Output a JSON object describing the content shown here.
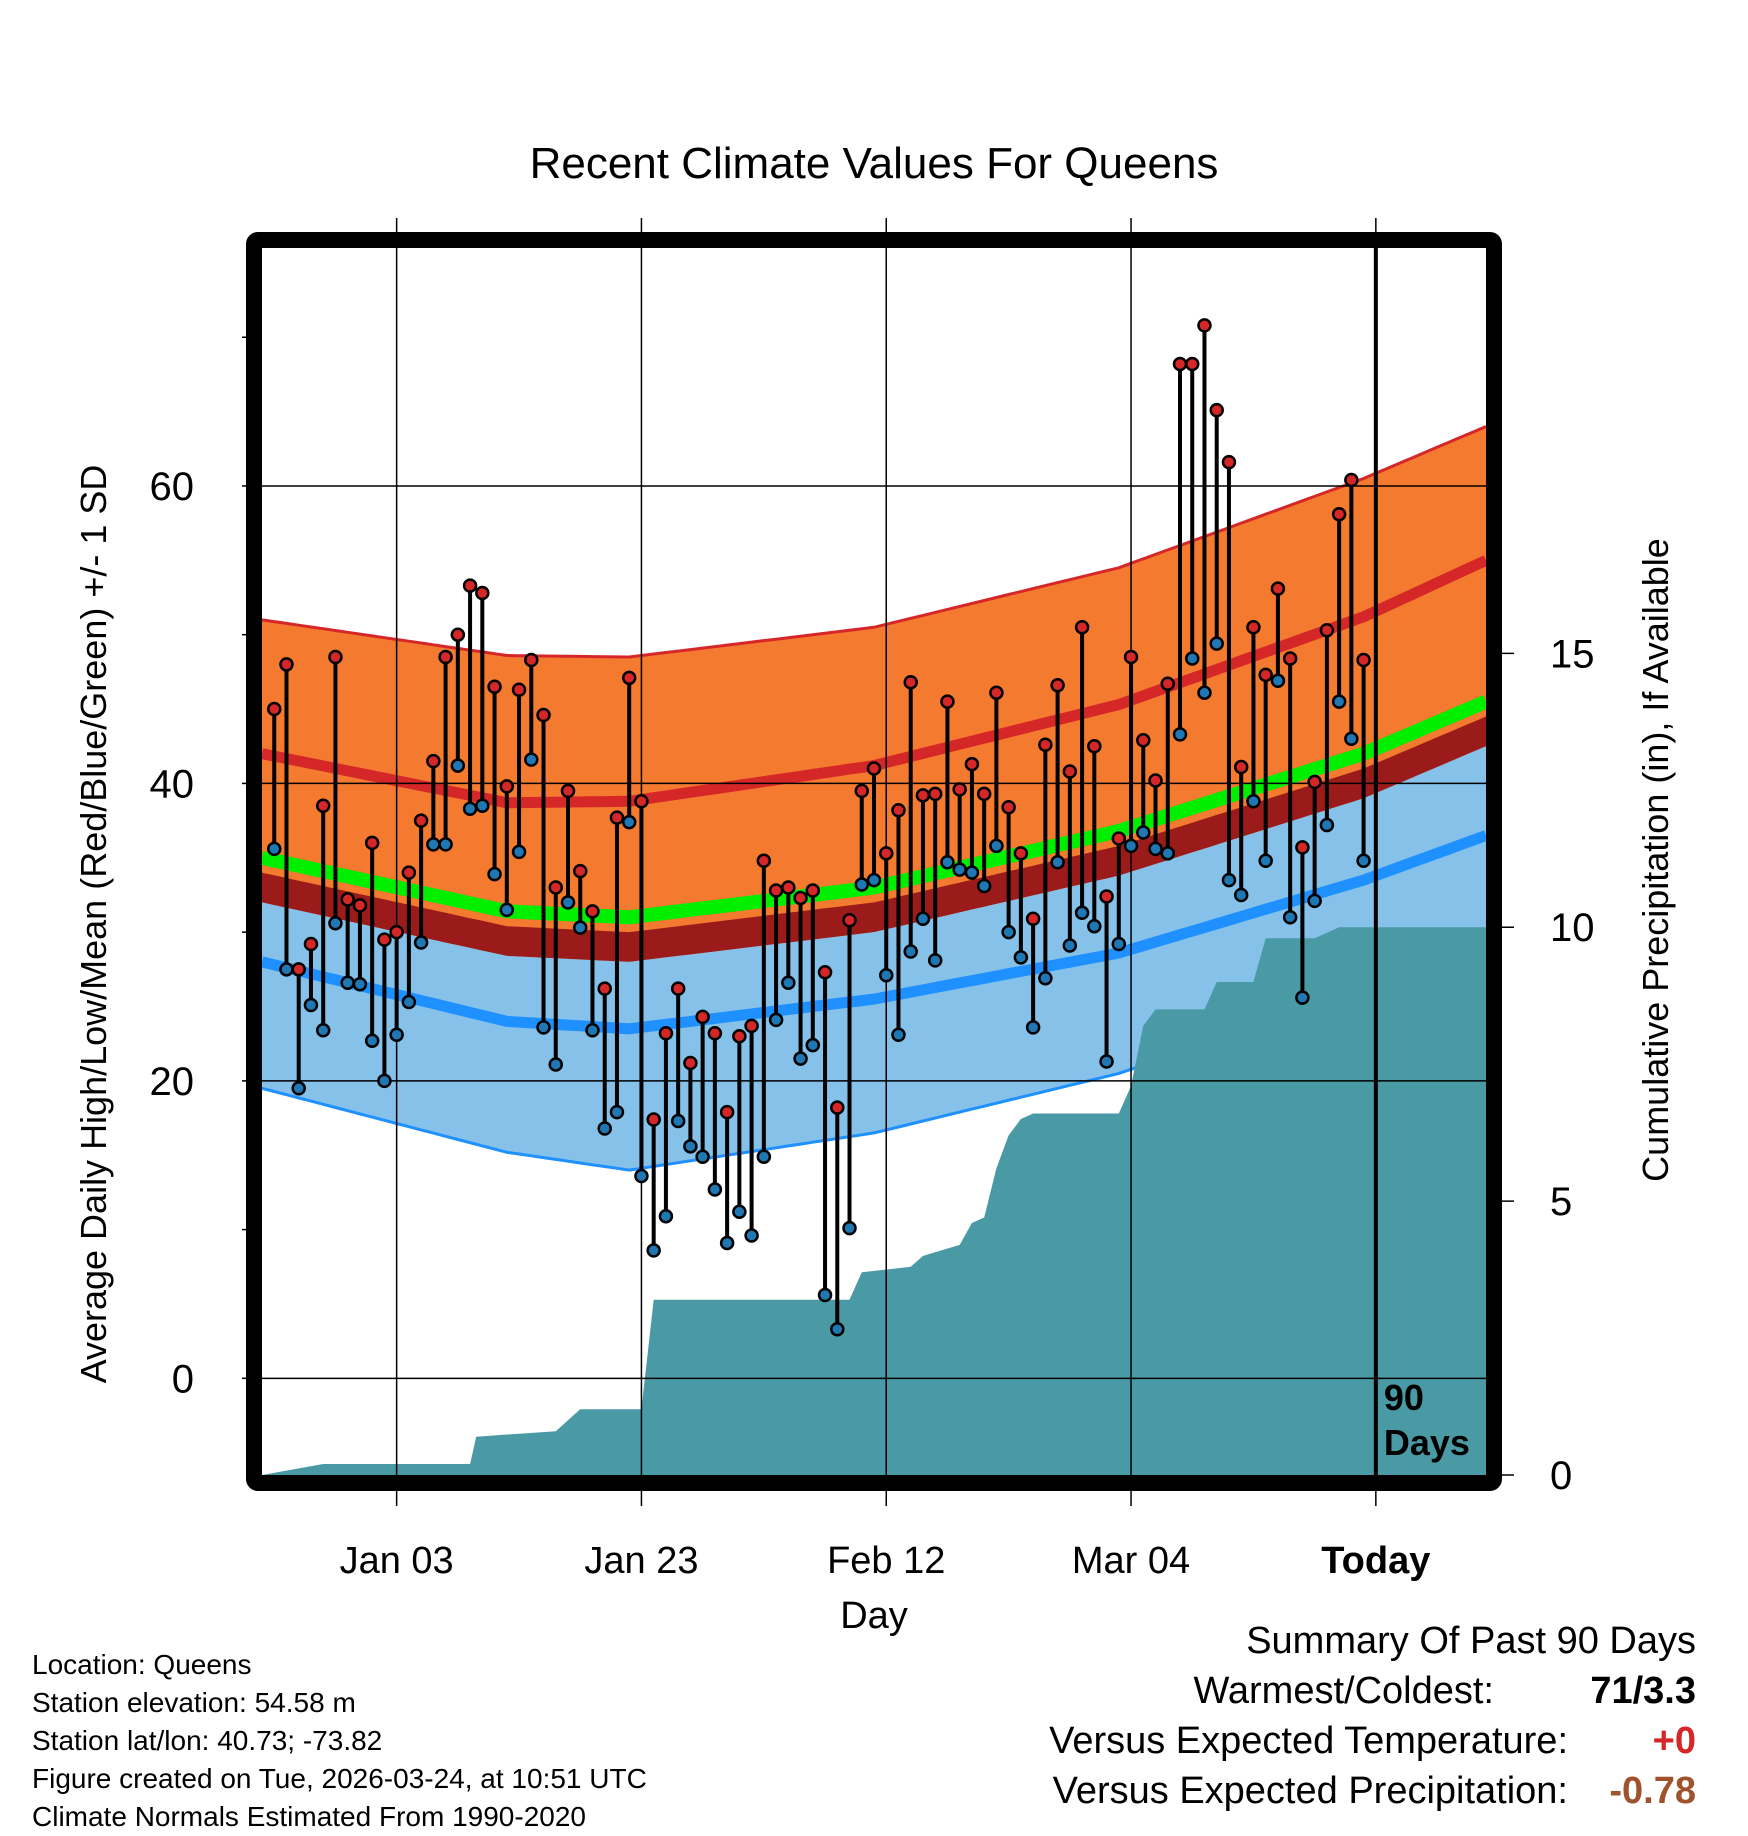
{
  "chart_data": {
    "type": "line",
    "title": "Recent Climate Values For Queens",
    "xlabel": "Day",
    "ylabel": "Average Daily High/Low/Mean (Red/Blue/Green) +/- 1 SD",
    "y2label": "Cumulative Precipitation (in), If Available",
    "x_tick_labels": [
      "Jan 03",
      "Jan 23",
      "Feb 12",
      "Mar 04",
      "Today"
    ],
    "x_tick_days": [
      11,
      31,
      51,
      71,
      91
    ],
    "xlim": [
      0,
      100
    ],
    "ylim": [
      -6.5,
      76
    ],
    "y_ticks": [
      0,
      20,
      40,
      60
    ],
    "y2lim": [
      0,
      22.4
    ],
    "y2_ticks": [
      0,
      5,
      10,
      15
    ],
    "today_marker": {
      "day": 91,
      "label_line1": "90",
      "label_line2": "Days"
    },
    "normals": {
      "days": [
        0,
        20,
        30,
        50,
        70,
        90,
        100
      ],
      "high_mean": [
        42,
        38.7,
        38.8,
        41.2,
        45.3,
        51.2,
        55
      ],
      "high_upper": [
        51,
        48.6,
        48.5,
        50.5,
        54.5,
        60.5,
        64
      ],
      "low_mean": [
        28,
        24,
        23.5,
        25.5,
        28.6,
        33.5,
        36.5
      ],
      "low_lower": [
        19.5,
        15.2,
        14,
        16.5,
        20.5,
        26,
        29.5
      ],
      "normal_mean": [
        35,
        31.4,
        31,
        33,
        36.8,
        42,
        45.5
      ]
    },
    "series": [
      {
        "name": "Daily High",
        "color": "#d62728",
        "values": [
          45,
          48,
          27.5,
          29.2,
          38.5,
          48.5,
          32.2,
          31.8,
          36,
          29.5,
          30,
          34,
          37.5,
          41.5,
          48.5,
          50,
          53.3,
          52.8,
          46.5,
          39.8,
          46.3,
          48.3,
          44.6,
          33,
          39.5,
          34.1,
          31.4,
          26.2,
          37.7,
          47.1,
          38.8,
          17.4,
          23.2,
          26.2,
          21.2,
          24.3,
          23.2,
          17.9,
          23,
          23.7,
          34.8,
          32.8,
          33,
          32.3,
          32.8,
          27.3,
          18.2,
          30.8,
          39.5,
          41,
          35.3,
          38.2,
          46.8,
          39.2,
          39.3,
          45.5,
          39.6,
          41.3,
          39.3,
          46.1,
          38.4,
          35.3,
          30.9,
          42.6,
          46.6,
          40.8,
          50.5,
          42.5,
          32.4,
          36.3,
          48.5,
          42.9,
          40.2,
          46.7,
          68.2,
          68.2,
          70.8,
          65.1,
          61.6,
          41.1,
          50.5,
          47.3,
          53.1,
          48.4,
          35.7,
          40.1,
          50.3,
          58.1,
          60.4,
          48.3
        ]
      },
      {
        "name": "Daily Low",
        "color": "#1f77b4",
        "values": [
          35.6,
          27.5,
          19.5,
          25.1,
          23.4,
          30.6,
          26.6,
          26.5,
          22.7,
          20,
          23.1,
          25.3,
          29.3,
          35.9,
          35.9,
          41.2,
          38.3,
          38.5,
          33.9,
          31.5,
          35.4,
          41.6,
          23.6,
          21.1,
          32,
          30.3,
          23.4,
          16.8,
          17.9,
          37.4,
          13.6,
          8.6,
          10.9,
          17.3,
          15.6,
          14.9,
          12.7,
          9.1,
          11.2,
          9.6,
          14.9,
          24.1,
          26.6,
          21.5,
          22.4,
          5.6,
          3.3,
          10.1,
          33.2,
          33.5,
          27.1,
          23.1,
          28.7,
          30.9,
          28.1,
          34.7,
          34.2,
          34,
          33.1,
          35.8,
          30,
          28.3,
          23.6,
          26.9,
          34.7,
          29.1,
          31.3,
          30.4,
          21.3,
          29.2,
          35.8,
          36.7,
          35.6,
          35.3,
          43.3,
          48.4,
          46.1,
          49.4,
          33.5,
          32.5,
          38.8,
          34.8,
          46.9,
          31,
          25.6,
          32.1,
          37.2,
          45.5,
          43,
          34.8
        ]
      }
    ],
    "precipitation": {
      "name": "Cumulative Precipitation (in)",
      "color": "#4a9aa5",
      "days": [
        0,
        5,
        17,
        17.5,
        24,
        26,
        31,
        32,
        48,
        49,
        53,
        54,
        57,
        58,
        59,
        60,
        61,
        62,
        63,
        64,
        70,
        71,
        72,
        73,
        77,
        78,
        81,
        82,
        86,
        87,
        88,
        100
      ],
      "values": [
        0,
        0.2,
        0.2,
        0.7,
        0.8,
        1.2,
        1.2,
        3.2,
        3.2,
        3.7,
        3.8,
        4,
        4.2,
        4.6,
        4.7,
        5.6,
        6.2,
        6.5,
        6.6,
        6.6,
        6.6,
        7.1,
        8.2,
        8.5,
        8.5,
        9.0,
        9.0,
        9.8,
        9.8,
        9.9,
        10.0,
        10.0
      ]
    }
  },
  "footer": {
    "location": "Location: Queens",
    "elevation": "Station elevation: 54.58 m",
    "latlon": "Station lat/lon: 40.73; -73.82",
    "created": "Figure created on Tue, 2026-03-24, at 10:51 UTC",
    "normals": "Climate Normals Estimated From 1990-2020"
  },
  "summary": {
    "title": "Summary Of Past 90 Days",
    "warm_cold_label": "Warmest/Coldest:",
    "warm_cold_value": "71/3.3",
    "temp_label": "Versus Expected Temperature:",
    "temp_value": "+0",
    "temp_color": "#d62728",
    "precip_label": "Versus Expected Precipitation:",
    "precip_value": "-0.78",
    "precip_color": "#a0522d"
  }
}
